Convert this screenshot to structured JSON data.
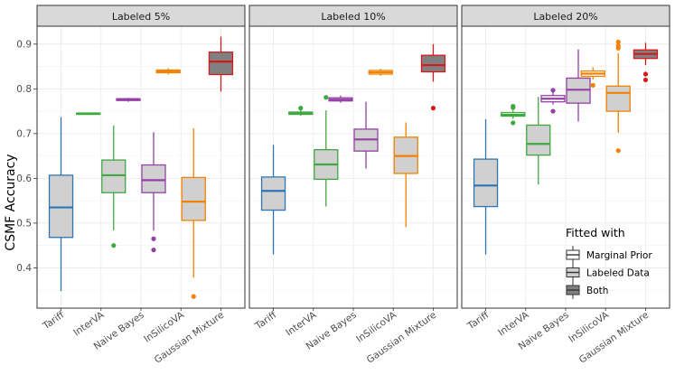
{
  "chart_data": {
    "type": "boxplot",
    "ylabel": "CSMF Accuracy",
    "xlabel": "",
    "ylim": [
      0.31,
      0.94
    ],
    "yticks": [
      0.4,
      0.5,
      0.6,
      0.7,
      0.8,
      0.9
    ],
    "grid": true,
    "categories": [
      "Tariff",
      "InterVA",
      "Naive Bayes",
      "InSilicoVA",
      "Gaussian Mixture"
    ],
    "method_colors": {
      "Tariff": "#2f74b5",
      "InterVA": "#3fa83f",
      "Naive Bayes": "#9440a6",
      "InSilicoVA": "#f28200",
      "Gaussian Mixture": "#d7191c"
    },
    "fill_colors": {
      "Marginal Prior": "#ffffff",
      "Labeled Data": "#d0d0d0",
      "Both": "#808080"
    },
    "legend": {
      "title": "Fitted with",
      "position": "bottom-right of last panel",
      "entries": [
        "Marginal Prior",
        "Labeled Data",
        "Both"
      ]
    },
    "panels": [
      {
        "title": "Labeled 5%",
        "boxes": [
          {
            "method": "Tariff",
            "fitted": "Labeled Data",
            "min": 0.348,
            "q1": 0.468,
            "median": 0.535,
            "q3": 0.607,
            "max": 0.737,
            "outliers": []
          },
          {
            "method": "InterVA",
            "fitted": "Marginal Prior",
            "min": 0.742,
            "q1": 0.744,
            "median": 0.745,
            "q3": 0.746,
            "max": 0.747,
            "outliers": []
          },
          {
            "method": "InterVA",
            "fitted": "Labeled Data",
            "min": 0.484,
            "q1": 0.568,
            "median": 0.607,
            "q3": 0.641,
            "max": 0.718,
            "outliers": [
              0.45
            ]
          },
          {
            "method": "Naive Bayes",
            "fitted": "Marginal Prior",
            "min": 0.771,
            "q1": 0.774,
            "median": 0.776,
            "q3": 0.778,
            "max": 0.78,
            "outliers": []
          },
          {
            "method": "Naive Bayes",
            "fitted": "Labeled Data",
            "min": 0.483,
            "q1": 0.568,
            "median": 0.596,
            "q3": 0.63,
            "max": 0.703,
            "outliers": [
              0.465,
              0.44
            ]
          },
          {
            "method": "InSilicoVA",
            "fitted": "Marginal Prior",
            "min": 0.832,
            "q1": 0.836,
            "median": 0.839,
            "q3": 0.842,
            "max": 0.846,
            "outliers": []
          },
          {
            "method": "InSilicoVA",
            "fitted": "Labeled Data",
            "min": 0.378,
            "q1": 0.506,
            "median": 0.548,
            "q3": 0.602,
            "max": 0.712,
            "outliers": [
              0.336
            ]
          },
          {
            "method": "Gaussian Mixture",
            "fitted": "Both",
            "min": 0.794,
            "q1": 0.832,
            "median": 0.861,
            "q3": 0.882,
            "max": 0.917,
            "outliers": []
          }
        ]
      },
      {
        "title": "Labeled 10%",
        "boxes": [
          {
            "method": "Tariff",
            "fitted": "Labeled Data",
            "min": 0.43,
            "q1": 0.529,
            "median": 0.572,
            "q3": 0.603,
            "max": 0.675,
            "outliers": []
          },
          {
            "method": "InterVA",
            "fitted": "Marginal Prior",
            "min": 0.74,
            "q1": 0.743,
            "median": 0.745,
            "q3": 0.748,
            "max": 0.752,
            "outliers": [
              0.757
            ]
          },
          {
            "method": "InterVA",
            "fitted": "Labeled Data",
            "min": 0.537,
            "q1": 0.598,
            "median": 0.631,
            "q3": 0.664,
            "max": 0.752,
            "outliers": [
              0.781
            ]
          },
          {
            "method": "Naive Bayes",
            "fitted": "Marginal Prior",
            "min": 0.769,
            "q1": 0.773,
            "median": 0.776,
            "q3": 0.78,
            "max": 0.785,
            "outliers": []
          },
          {
            "method": "Naive Bayes",
            "fitted": "Labeled Data",
            "min": 0.622,
            "q1": 0.661,
            "median": 0.687,
            "q3": 0.71,
            "max": 0.771,
            "outliers": []
          },
          {
            "method": "InSilicoVA",
            "fitted": "Marginal Prior",
            "min": 0.829,
            "q1": 0.833,
            "median": 0.837,
            "q3": 0.841,
            "max": 0.845,
            "outliers": []
          },
          {
            "method": "InSilicoVA",
            "fitted": "Labeled Data",
            "min": 0.491,
            "q1": 0.611,
            "median": 0.65,
            "q3": 0.692,
            "max": 0.725,
            "outliers": []
          },
          {
            "method": "Gaussian Mixture",
            "fitted": "Both",
            "min": 0.816,
            "q1": 0.838,
            "median": 0.853,
            "q3": 0.875,
            "max": 0.9,
            "outliers": [
              0.757
            ]
          }
        ]
      },
      {
        "title": "Labeled 20%",
        "boxes": [
          {
            "method": "Tariff",
            "fitted": "Labeled Data",
            "min": 0.43,
            "q1": 0.537,
            "median": 0.584,
            "q3": 0.643,
            "max": 0.732,
            "outliers": []
          },
          {
            "method": "InterVA",
            "fitted": "Marginal Prior",
            "min": 0.733,
            "q1": 0.739,
            "median": 0.742,
            "q3": 0.747,
            "max": 0.752,
            "outliers": [
              0.724,
              0.758,
              0.761
            ]
          },
          {
            "method": "InterVA",
            "fitted": "Labeled Data",
            "min": 0.586,
            "q1": 0.652,
            "median": 0.677,
            "q3": 0.719,
            "max": 0.782,
            "outliers": []
          },
          {
            "method": "Naive Bayes",
            "fitted": "Marginal Prior",
            "min": 0.765,
            "q1": 0.771,
            "median": 0.778,
            "q3": 0.785,
            "max": 0.793,
            "outliers": [
              0.75,
              0.797
            ]
          },
          {
            "method": "Naive Bayes",
            "fitted": "Labeled Data",
            "min": 0.727,
            "q1": 0.768,
            "median": 0.798,
            "q3": 0.824,
            "max": 0.888,
            "outliers": []
          },
          {
            "method": "InSilicoVA",
            "fitted": "Marginal Prior",
            "min": 0.821,
            "q1": 0.828,
            "median": 0.834,
            "q3": 0.84,
            "max": 0.848,
            "outliers": [
              0.808
            ]
          },
          {
            "method": "InSilicoVA",
            "fitted": "Labeled Data",
            "min": 0.702,
            "q1": 0.75,
            "median": 0.791,
            "q3": 0.806,
            "max": 0.88,
            "outliers": [
              0.662,
              0.891,
              0.897,
              0.905
            ]
          },
          {
            "method": "Gaussian Mixture",
            "fitted": "Both",
            "min": 0.853,
            "q1": 0.868,
            "median": 0.878,
            "q3": 0.887,
            "max": 0.903,
            "outliers": [
              0.82,
              0.833
            ]
          }
        ]
      }
    ]
  }
}
